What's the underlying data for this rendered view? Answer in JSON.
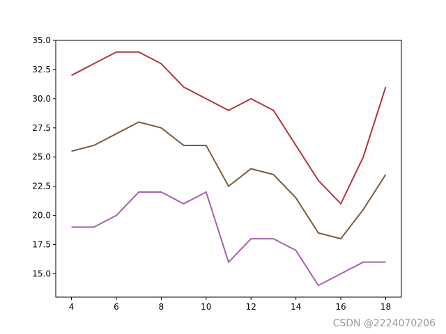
{
  "chart_data": {
    "type": "line",
    "x": [
      4,
      5,
      6,
      7,
      8,
      9,
      10,
      11,
      12,
      13,
      14,
      15,
      16,
      17,
      18
    ],
    "series": [
      {
        "color": "#b8323c",
        "values": [
          32,
          33,
          34,
          34,
          33,
          31,
          30,
          29,
          30,
          29,
          26,
          23,
          21,
          25,
          31
        ]
      },
      {
        "color": "#7e5a3b",
        "values": [
          25.5,
          26,
          27,
          28,
          27.5,
          26,
          26,
          22.5,
          24,
          23.5,
          21.5,
          18.5,
          18,
          20.5,
          23.5
        ]
      },
      {
        "color": "#a263aa",
        "values": [
          19,
          19,
          20,
          22,
          22,
          21,
          22,
          16,
          18,
          18,
          17,
          14,
          15,
          16,
          16
        ]
      }
    ],
    "xlim": [
      3.3,
      18.7
    ],
    "ylim": [
      13,
      35
    ],
    "xticks": [
      4,
      6,
      8,
      10,
      12,
      14,
      16,
      18
    ],
    "yticks": [
      {
        "value": 15,
        "label": "15.0"
      },
      {
        "value": 17.5,
        "label": "17.5"
      },
      {
        "value": 20,
        "label": "20.0"
      },
      {
        "value": 22.5,
        "label": "22.5"
      },
      {
        "value": 25,
        "label": "25.0"
      },
      {
        "value": 27.5,
        "label": "27.5"
      },
      {
        "value": 30,
        "label": "30.0"
      },
      {
        "value": 32.5,
        "label": "32.5"
      },
      {
        "value": 35,
        "label": "35.0"
      }
    ],
    "watermark": "CSDN @2224070206"
  }
}
